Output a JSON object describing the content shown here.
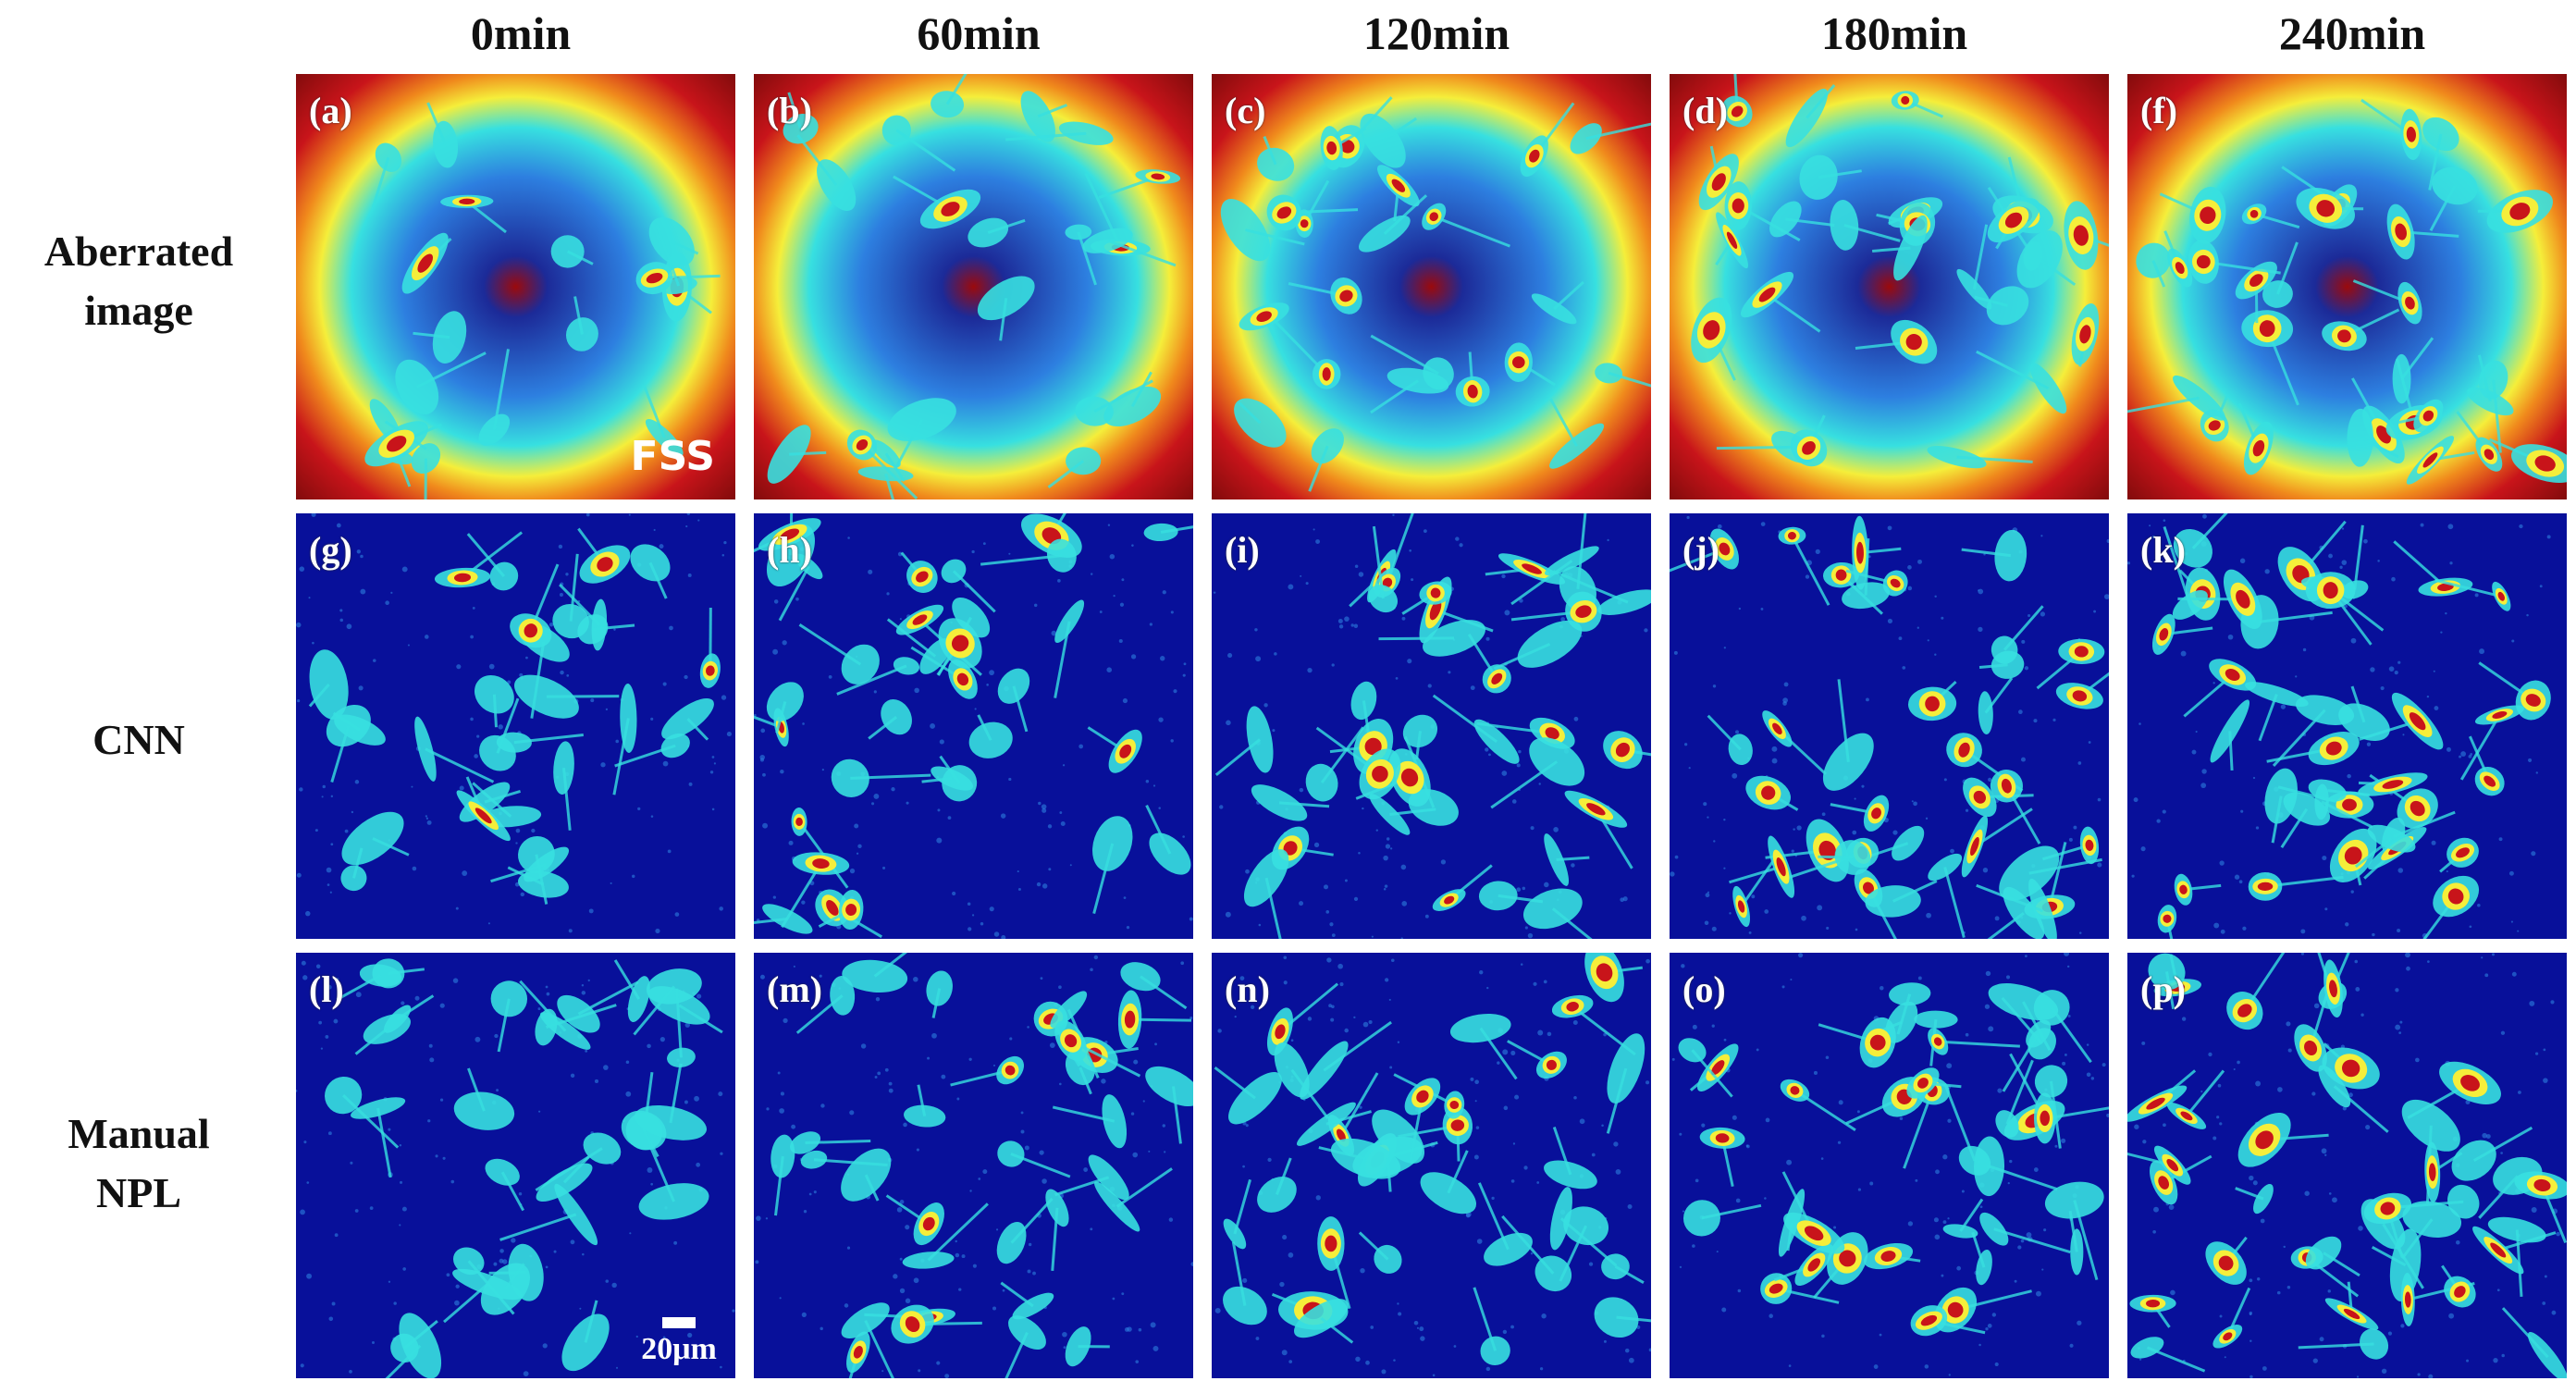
{
  "columns": [
    "0min",
    "60min",
    "120min",
    "180min",
    "240min"
  ],
  "rows": [
    {
      "label_line1": "Aberrated",
      "label_line2": "image"
    },
    {
      "label_line1": "CNN",
      "label_line2": ""
    },
    {
      "label_line1": "Manual",
      "label_line2": "NPL"
    }
  ],
  "panel_letters": [
    [
      "(a)",
      "(b)",
      "(c)",
      "(d)",
      "(f)"
    ],
    [
      "(g)",
      "(h)",
      "(i)",
      "(j)",
      "(k)"
    ],
    [
      "(l)",
      "(m)",
      "(n)",
      "(o)",
      "(p)"
    ]
  ],
  "annotations": {
    "flow_label": "FSS",
    "scale_bar_label": "20μm"
  },
  "colors": {
    "background_low": "#08109a",
    "phase_mid": "#2d7fe0",
    "cyan": "#37e0e0",
    "yellow": "#f5ee3a",
    "orange": "#f08a1c",
    "red": "#c8141a"
  }
}
